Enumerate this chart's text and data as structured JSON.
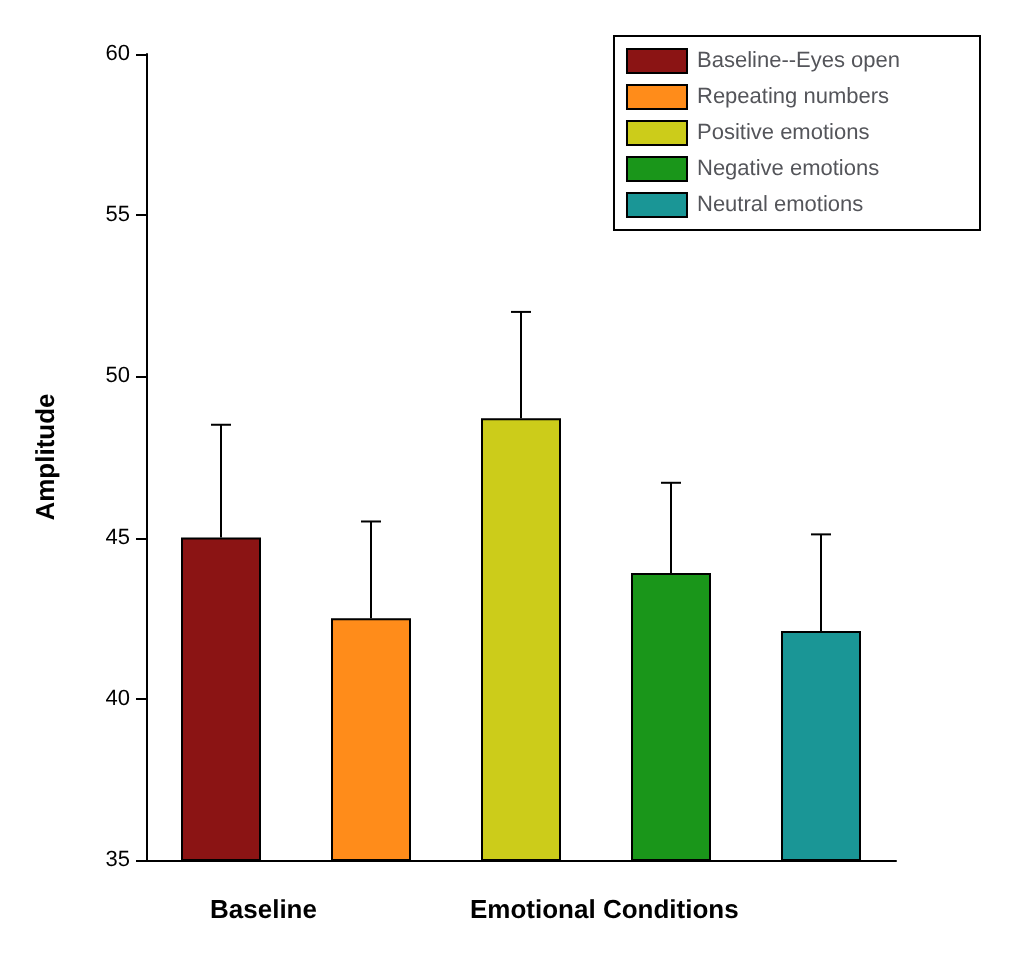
{
  "chart_data": {
    "type": "bar",
    "ylabel": "Amplitude",
    "categories": [
      null,
      null,
      null,
      null,
      null
    ],
    "series": [
      {
        "name": "Baseline--Eyes open",
        "color": "#8b1414",
        "values": [
          45,
          null,
          null,
          null,
          null
        ],
        "errors": [
          [
            45,
            48.5
          ],
          null,
          null,
          null,
          null
        ]
      },
      {
        "name": "Repeating numbers",
        "color": "#ff8c1a",
        "values": [
          null,
          42.5,
          null,
          null,
          null
        ],
        "errors": [
          null,
          [
            42.5,
            45.5
          ],
          null,
          null,
          null
        ]
      },
      {
        "name": "Positive emotions",
        "color": "#cccc1a",
        "values": [
          null,
          null,
          48.7,
          null,
          null
        ],
        "errors": [
          null,
          null,
          [
            48.7,
            52
          ],
          null,
          null
        ]
      },
      {
        "name": "Negative emotions",
        "color": "#1a961a",
        "values": [
          null,
          null,
          null,
          43.9,
          null
        ],
        "errors": [
          null,
          null,
          null,
          [
            43.9,
            46.7
          ],
          null
        ]
      },
      {
        "name": "Neutral emotions",
        "color": "#1a9696",
        "values": [
          null,
          null,
          null,
          null,
          42.1
        ],
        "errors": [
          null,
          null,
          null,
          null,
          [
            42.1,
            45.1
          ]
        ]
      }
    ],
    "ylim": [
      35,
      60
    ],
    "yticks": [
      35,
      40,
      45,
      50,
      55,
      60
    ],
    "grid": false,
    "legend": "top right",
    "annotations": [
      "Baseline",
      "Emotional Conditions"
    ]
  }
}
